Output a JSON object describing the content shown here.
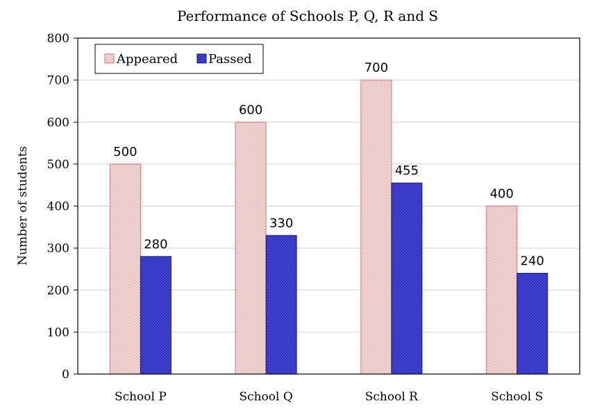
{
  "chart_data": {
    "type": "bar",
    "title": "Performance of Schools P, Q, R and S",
    "xlabel": "",
    "ylabel": "Number of students",
    "ylim": [
      0,
      800
    ],
    "yticks": [
      0,
      100,
      200,
      300,
      400,
      500,
      600,
      700,
      800
    ],
    "categories": [
      "School P",
      "School Q",
      "School R",
      "School S"
    ],
    "series": [
      {
        "name": "Appeared",
        "values": [
          500,
          600,
          700,
          400
        ],
        "color": "#f9d6d6",
        "stroke": "#cc7777"
      },
      {
        "name": "Passed",
        "values": [
          280,
          330,
          455,
          240
        ],
        "color": "#3838d8",
        "stroke": "#1a1a70"
      }
    ],
    "data_labels": true,
    "grid": "horizontal",
    "legend_position": "top-left"
  }
}
